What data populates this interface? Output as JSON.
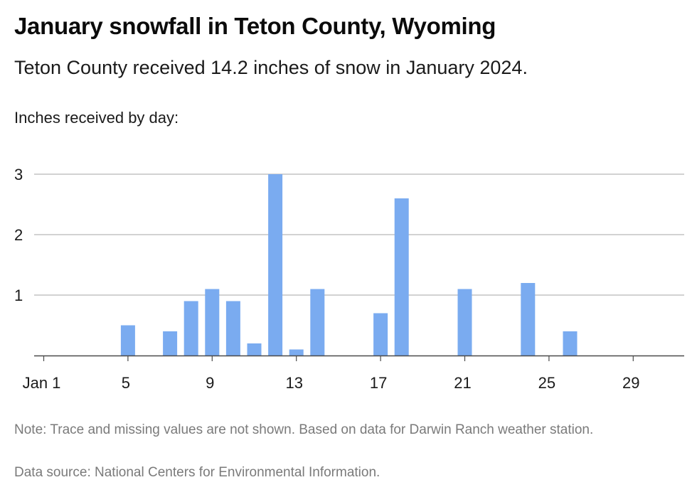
{
  "header": {
    "title": "January snowfall in Teton County, Wyoming",
    "subtitle": "Teton County received 14.2 inches of snow in January 2024."
  },
  "chart_data": {
    "type": "bar",
    "title": "January snowfall in Teton County, Wyoming",
    "subtitle": "Teton County received 14.2 inches of snow in January 2024.",
    "ylabel": "Inches received by day:",
    "xlabel": "",
    "ylim": [
      0,
      3
    ],
    "xlim": [
      1,
      31
    ],
    "yticks": [
      1,
      2,
      3
    ],
    "xticks": [
      {
        "value": 1,
        "label": "Jan 1"
      },
      {
        "value": 5,
        "label": "5"
      },
      {
        "value": 9,
        "label": "9"
      },
      {
        "value": 13,
        "label": "13"
      },
      {
        "value": 17,
        "label": "17"
      },
      {
        "value": 21,
        "label": "21"
      },
      {
        "value": 25,
        "label": "25"
      },
      {
        "value": 29,
        "label": "29"
      }
    ],
    "grid": true,
    "bar_color": "#7aabf0",
    "x": [
      5,
      7,
      8,
      9,
      10,
      11,
      12,
      13,
      14,
      17,
      18,
      21,
      24,
      26
    ],
    "values": [
      0.5,
      0.4,
      0.9,
      1.1,
      0.9,
      0.2,
      3.0,
      0.1,
      1.1,
      0.7,
      2.6,
      1.1,
      1.2,
      0.4
    ]
  },
  "footer": {
    "note": "Note: Trace and missing values are not shown. Based on data for Darwin Ranch weather station.",
    "source": "Data source: National Centers for Environmental Information."
  }
}
